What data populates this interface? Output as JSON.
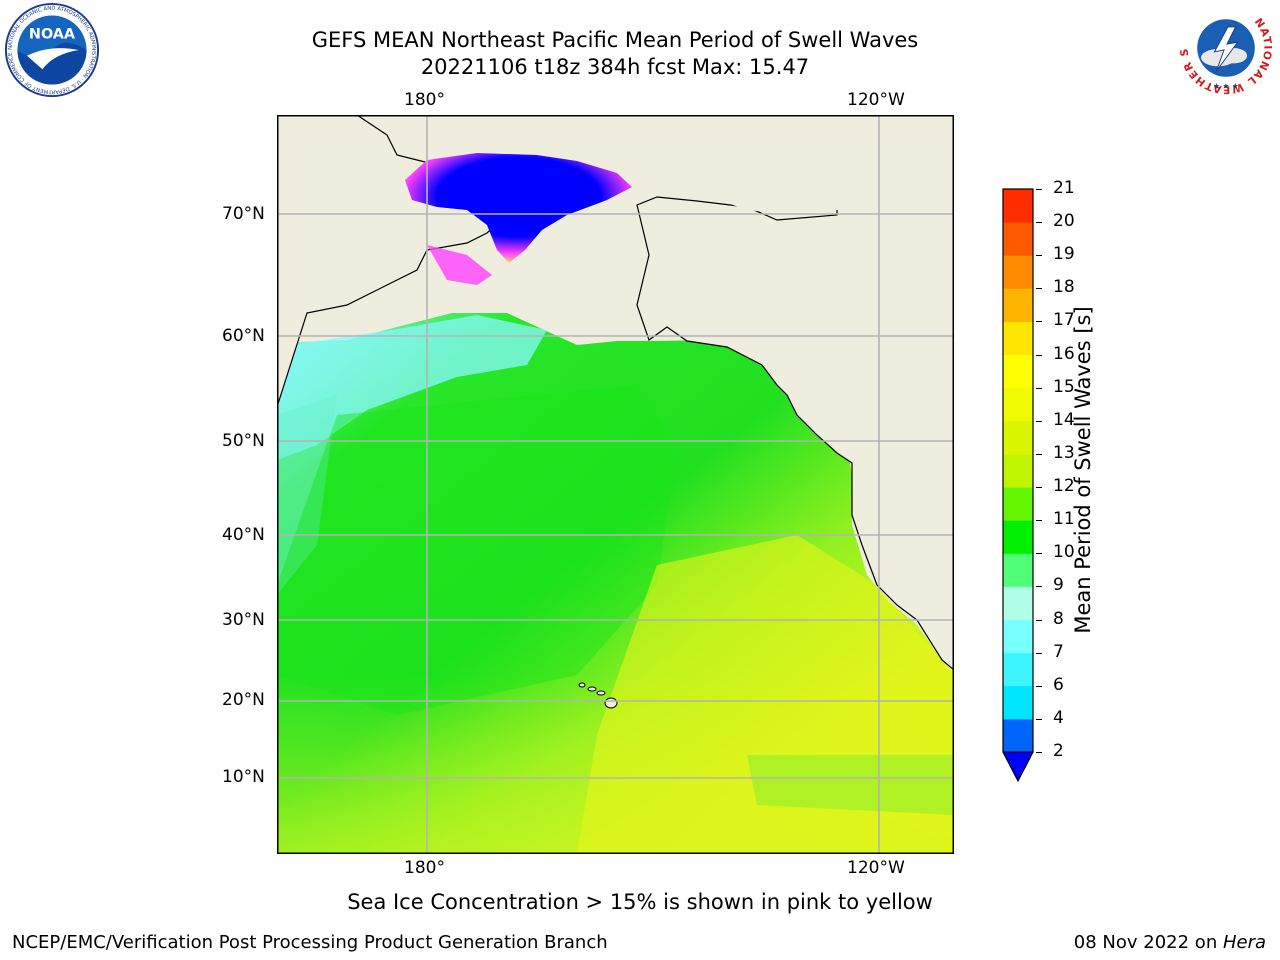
{
  "header": {
    "title_line1": "GEFS MEAN Northeast Pacific Mean Period of Swell Waves",
    "title_line2": "20221106 t18z 384h fcst   Max: 15.47"
  },
  "logos": {
    "left": "noaa-logo",
    "right": "national-weather-service-logo",
    "left_seal_text": "NATIONAL OCEANIC AND ATMOSPHERIC ADMINISTRATION · U.S. DEPARTMENT OF COMMERCE",
    "left_text": "NOAA",
    "right_ring_text": "NATIONAL WEATHER SERVICE"
  },
  "map": {
    "lon_labels_top": [
      "180°",
      "120°W"
    ],
    "lon_labels_bottom": [
      "180°",
      "120°W"
    ],
    "lat_labels": [
      "70°N",
      "60°N",
      "50°N",
      "40°N",
      "30°N",
      "20°N",
      "10°N"
    ],
    "colors": {
      "land": "#efedde",
      "ice_core": "#0000ff",
      "ice_edge": "#ff40ff",
      "grid": "#b3b3b3"
    }
  },
  "colorbar": {
    "label": "Mean Period of Swell Waves [s]",
    "ticks": [
      "2",
      "4",
      "6",
      "7",
      "8",
      "9",
      "10",
      "11",
      "12",
      "13",
      "14",
      "15",
      "16",
      "17",
      "18",
      "19",
      "20",
      "21"
    ],
    "colors": [
      "#0064ff",
      "#00e6ff",
      "#3cf5ff",
      "#78ffff",
      "#b0ffe6",
      "#50ff78",
      "#00f000",
      "#64f500",
      "#c0f500",
      "#d9f500",
      "#f0fa00",
      "#ffff00",
      "#ffe600",
      "#ffb400",
      "#ff8c00",
      "#ff5a00",
      "#ff2d00",
      "#ff0000"
    ],
    "extend_color": "#0000ff"
  },
  "footer": {
    "note": "Sea Ice Concentration > 15% is shown in pink to yellow",
    "org": "NCEP/EMC/Verification Post Processing Product Generation Branch",
    "date": "08 Nov 2022 on ",
    "host": "Hera"
  }
}
